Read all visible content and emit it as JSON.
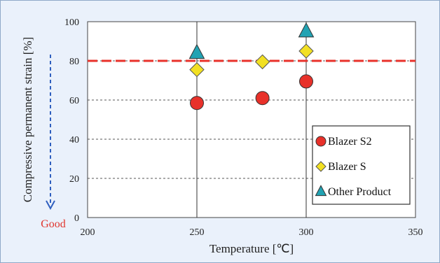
{
  "chart_data": {
    "type": "scatter",
    "title": "",
    "xlabel": "Temperature [℃]",
    "ylabel": "Compressive permanent strain [%]",
    "xlim": [
      200,
      350
    ],
    "ylim": [
      0,
      100
    ],
    "xticks": [
      "200",
      "250",
      "300",
      "350"
    ],
    "yticks": [
      "0",
      "20",
      "40",
      "60",
      "80",
      "100"
    ],
    "grid": "horizontal dashed; vertical solid at 250 and 300",
    "reference_line": {
      "y": 80,
      "color": "#e8312a",
      "style": "dashed"
    },
    "annotation": "Good",
    "legend_position": "bottom-right",
    "series": [
      {
        "name": "Blazer S2",
        "marker": "circle",
        "color": "#e8312a",
        "points": [
          {
            "x": 250,
            "y": 58.5
          },
          {
            "x": 280,
            "y": 61
          },
          {
            "x": 300,
            "y": 69.5
          }
        ]
      },
      {
        "name": "Blazer S",
        "marker": "diamond",
        "color": "#f2e022",
        "points": [
          {
            "x": 250,
            "y": 75.5
          },
          {
            "x": 280,
            "y": 79.5
          },
          {
            "x": 300,
            "y": 85
          }
        ]
      },
      {
        "name": "Other Product",
        "marker": "triangle",
        "color": "#22a3b3",
        "points": [
          {
            "x": 250,
            "y": 84
          },
          {
            "x": 300,
            "y": 95
          }
        ]
      }
    ]
  }
}
